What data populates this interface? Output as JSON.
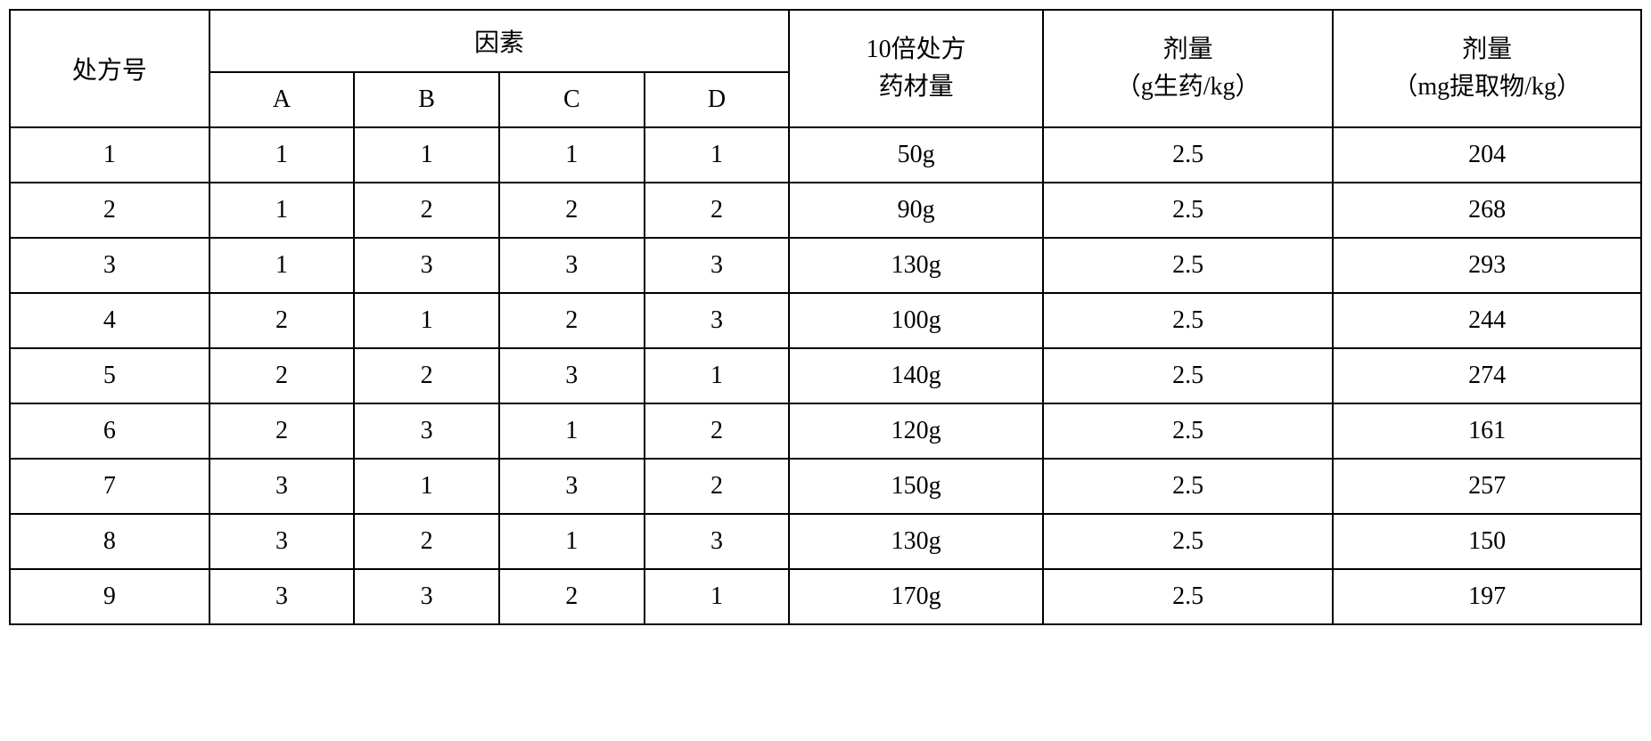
{
  "table": {
    "headers": {
      "prescription_no": "处方号",
      "factor_group": "因素",
      "factor_a": "A",
      "factor_b": "B",
      "factor_c": "C",
      "factor_d": "D",
      "amount_line1": "10倍处方",
      "amount_line2": "药材量",
      "dose1_line1": "剂量",
      "dose1_line2": "（g生药/kg）",
      "dose2_line1": "剂量",
      "dose2_line2": "（mg提取物/kg）"
    },
    "rows": [
      {
        "no": "1",
        "a": "1",
        "b": "1",
        "c": "1",
        "d": "1",
        "amount": "50g",
        "dose1": "2.5",
        "dose2": "204"
      },
      {
        "no": "2",
        "a": "1",
        "b": "2",
        "c": "2",
        "d": "2",
        "amount": "90g",
        "dose1": "2.5",
        "dose2": "268"
      },
      {
        "no": "3",
        "a": "1",
        "b": "3",
        "c": "3",
        "d": "3",
        "amount": "130g",
        "dose1": "2.5",
        "dose2": "293"
      },
      {
        "no": "4",
        "a": "2",
        "b": "1",
        "c": "2",
        "d": "3",
        "amount": "100g",
        "dose1": "2.5",
        "dose2": "244"
      },
      {
        "no": "5",
        "a": "2",
        "b": "2",
        "c": "3",
        "d": "1",
        "amount": "140g",
        "dose1": "2.5",
        "dose2": "274"
      },
      {
        "no": "6",
        "a": "2",
        "b": "3",
        "c": "1",
        "d": "2",
        "amount": "120g",
        "dose1": "2.5",
        "dose2": "161"
      },
      {
        "no": "7",
        "a": "3",
        "b": "1",
        "c": "3",
        "d": "2",
        "amount": "150g",
        "dose1": "2.5",
        "dose2": "257"
      },
      {
        "no": "8",
        "a": "3",
        "b": "2",
        "c": "1",
        "d": "3",
        "amount": "130g",
        "dose1": "2.5",
        "dose2": "150"
      },
      {
        "no": "9",
        "a": "3",
        "b": "3",
        "c": "2",
        "d": "1",
        "amount": "170g",
        "dose1": "2.5",
        "dose2": "197"
      }
    ],
    "styling": {
      "border_color": "#000000",
      "border_width": 2,
      "background_color": "#ffffff",
      "text_color": "#000000",
      "font_size": 28,
      "font_family": "SimSun"
    }
  }
}
